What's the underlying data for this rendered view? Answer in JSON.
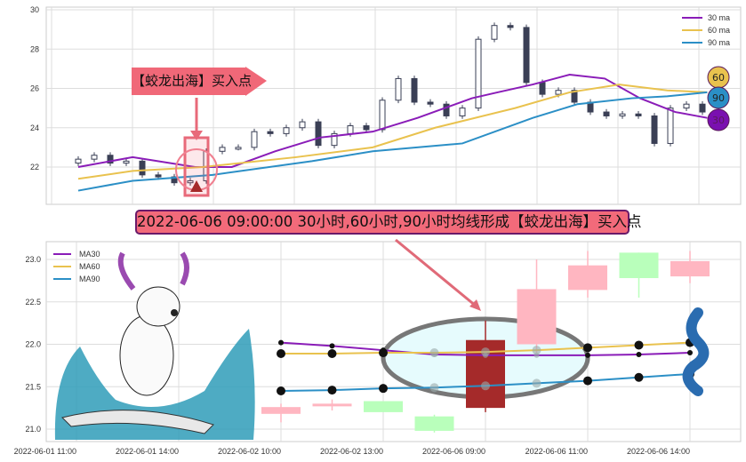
{
  "colors": {
    "ma30": "#8a1cb8",
    "ma60": "#e9c24e",
    "ma90": "#2b8fc6",
    "up_pink": "#ffb6c1",
    "down_green": "#b9ffbb",
    "highlight": "#a52a2a",
    "annotation": "#f06878"
  },
  "annotations": {
    "top_tag": "【蛟龙出海】买入点",
    "banner": "2022-06-06 09:00:00 30小时,60小时,90小时均线形成【蛟龙出海】买入点",
    "badges": [
      "60",
      "90",
      "30"
    ]
  },
  "chart_data": [
    {
      "type": "candlestick",
      "ylim": [
        20,
        30
      ],
      "yticks": [
        "30",
        "28",
        "26",
        "24",
        "22"
      ],
      "grid": true,
      "legend": {
        "placement": "top-right",
        "entries": [
          "30 ma",
          "60 ma",
          "90 ma"
        ]
      },
      "closes": [
        22.4,
        22.6,
        22.2,
        22.3,
        21.6,
        21.5,
        21.2,
        21.3,
        22.8,
        23.0,
        23.0,
        23.8,
        23.7,
        24.0,
        24.3,
        23.1,
        23.7,
        24.1,
        23.9,
        25.4,
        26.5,
        25.3,
        25.2,
        24.6,
        25.0,
        28.5,
        29.2,
        29.1,
        26.3,
        25.7,
        25.9,
        25.3,
        24.8,
        24.6,
        24.7,
        24.6,
        23.2,
        25.0,
        25.2,
        24.8
      ],
      "ma30": [
        [
          0,
          22.0
        ],
        [
          3.4,
          22.5
        ],
        [
          7.3,
          22.0
        ],
        [
          9.6,
          22.0
        ],
        [
          12.3,
          22.8
        ],
        [
          15.1,
          23.5
        ],
        [
          18.4,
          23.8
        ],
        [
          21.2,
          24.5
        ],
        [
          24.6,
          25.5
        ],
        [
          26.2,
          25.8
        ],
        [
          28.4,
          26.2
        ],
        [
          30.7,
          26.7
        ],
        [
          32.9,
          26.5
        ],
        [
          35.1,
          25.5
        ],
        [
          37.3,
          24.8
        ],
        [
          39.3,
          24.5
        ]
      ],
      "ma60": [
        [
          0,
          21.4
        ],
        [
          3.4,
          21.8
        ],
        [
          7.8,
          22.0
        ],
        [
          13.6,
          22.5
        ],
        [
          18.4,
          23.0
        ],
        [
          22.3,
          24.0
        ],
        [
          27.3,
          25.0
        ],
        [
          30.7,
          25.8
        ],
        [
          33.8,
          26.2
        ],
        [
          36.8,
          25.9
        ],
        [
          39.3,
          25.8
        ]
      ],
      "ma90": [
        [
          0,
          20.8
        ],
        [
          3.4,
          21.3
        ],
        [
          8.4,
          21.6
        ],
        [
          14.6,
          22.3
        ],
        [
          18.4,
          22.8
        ],
        [
          24,
          23.2
        ],
        [
          28.4,
          24.5
        ],
        [
          31.2,
          25.2
        ],
        [
          34.6,
          25.5
        ],
        [
          36.8,
          25.6
        ],
        [
          39.3,
          25.8
        ]
      ],
      "signal_index": 7
    },
    {
      "type": "candlestick",
      "ylim": [
        20.9,
        23.2
      ],
      "yticks": [
        "23.0",
        "22.5",
        "22.0",
        "21.5",
        "21.0"
      ],
      "xticks": [
        "2022-06-01 11:00",
        "2022-06-01 14:00",
        "2022-06-02 10:00",
        "2022-06-02 13:00",
        "2022-06-06 09:00",
        "2022-06-06 11:00",
        "2022-06-06 14:00"
      ],
      "grid": true,
      "legend": {
        "placement": "top-left",
        "entries": [
          "MA30",
          "MA60",
          "MA90"
        ]
      },
      "candles": [
        {
          "o": 21.18,
          "h": 21.3,
          "l": 21.08,
          "c": 21.26,
          "color": "pink"
        },
        {
          "o": 21.27,
          "h": 21.35,
          "l": 21.22,
          "c": 21.3,
          "color": "pink"
        },
        {
          "o": 21.33,
          "h": 21.33,
          "l": 21.2,
          "c": 21.2,
          "color": "green"
        },
        {
          "o": 21.15,
          "h": 21.17,
          "l": 20.96,
          "c": 20.98,
          "color": "green"
        },
        {
          "o": 22.05,
          "h": 22.28,
          "l": 21.2,
          "c": 21.25,
          "color": "highlight"
        },
        {
          "o": 22.0,
          "h": 23.0,
          "l": 21.9,
          "c": 22.65,
          "color": "pink"
        },
        {
          "o": 22.64,
          "h": 23.1,
          "l": 22.55,
          "c": 22.93,
          "color": "pink"
        },
        {
          "o": 23.08,
          "h": 23.08,
          "l": 22.55,
          "c": 22.78,
          "color": "green"
        },
        {
          "o": 22.8,
          "h": 23.1,
          "l": 22.72,
          "c": 22.98,
          "color": "pink"
        }
      ],
      "ma30": [
        22.02,
        21.98,
        21.93,
        21.88,
        21.87,
        21.87,
        21.87,
        21.88,
        21.9
      ],
      "ma60": [
        21.89,
        21.89,
        21.9,
        21.9,
        21.91,
        21.93,
        21.96,
        21.99,
        22.02
      ],
      "ma90": [
        21.45,
        21.46,
        21.48,
        21.49,
        21.51,
        21.54,
        21.57,
        21.61,
        21.65
      ]
    }
  ]
}
